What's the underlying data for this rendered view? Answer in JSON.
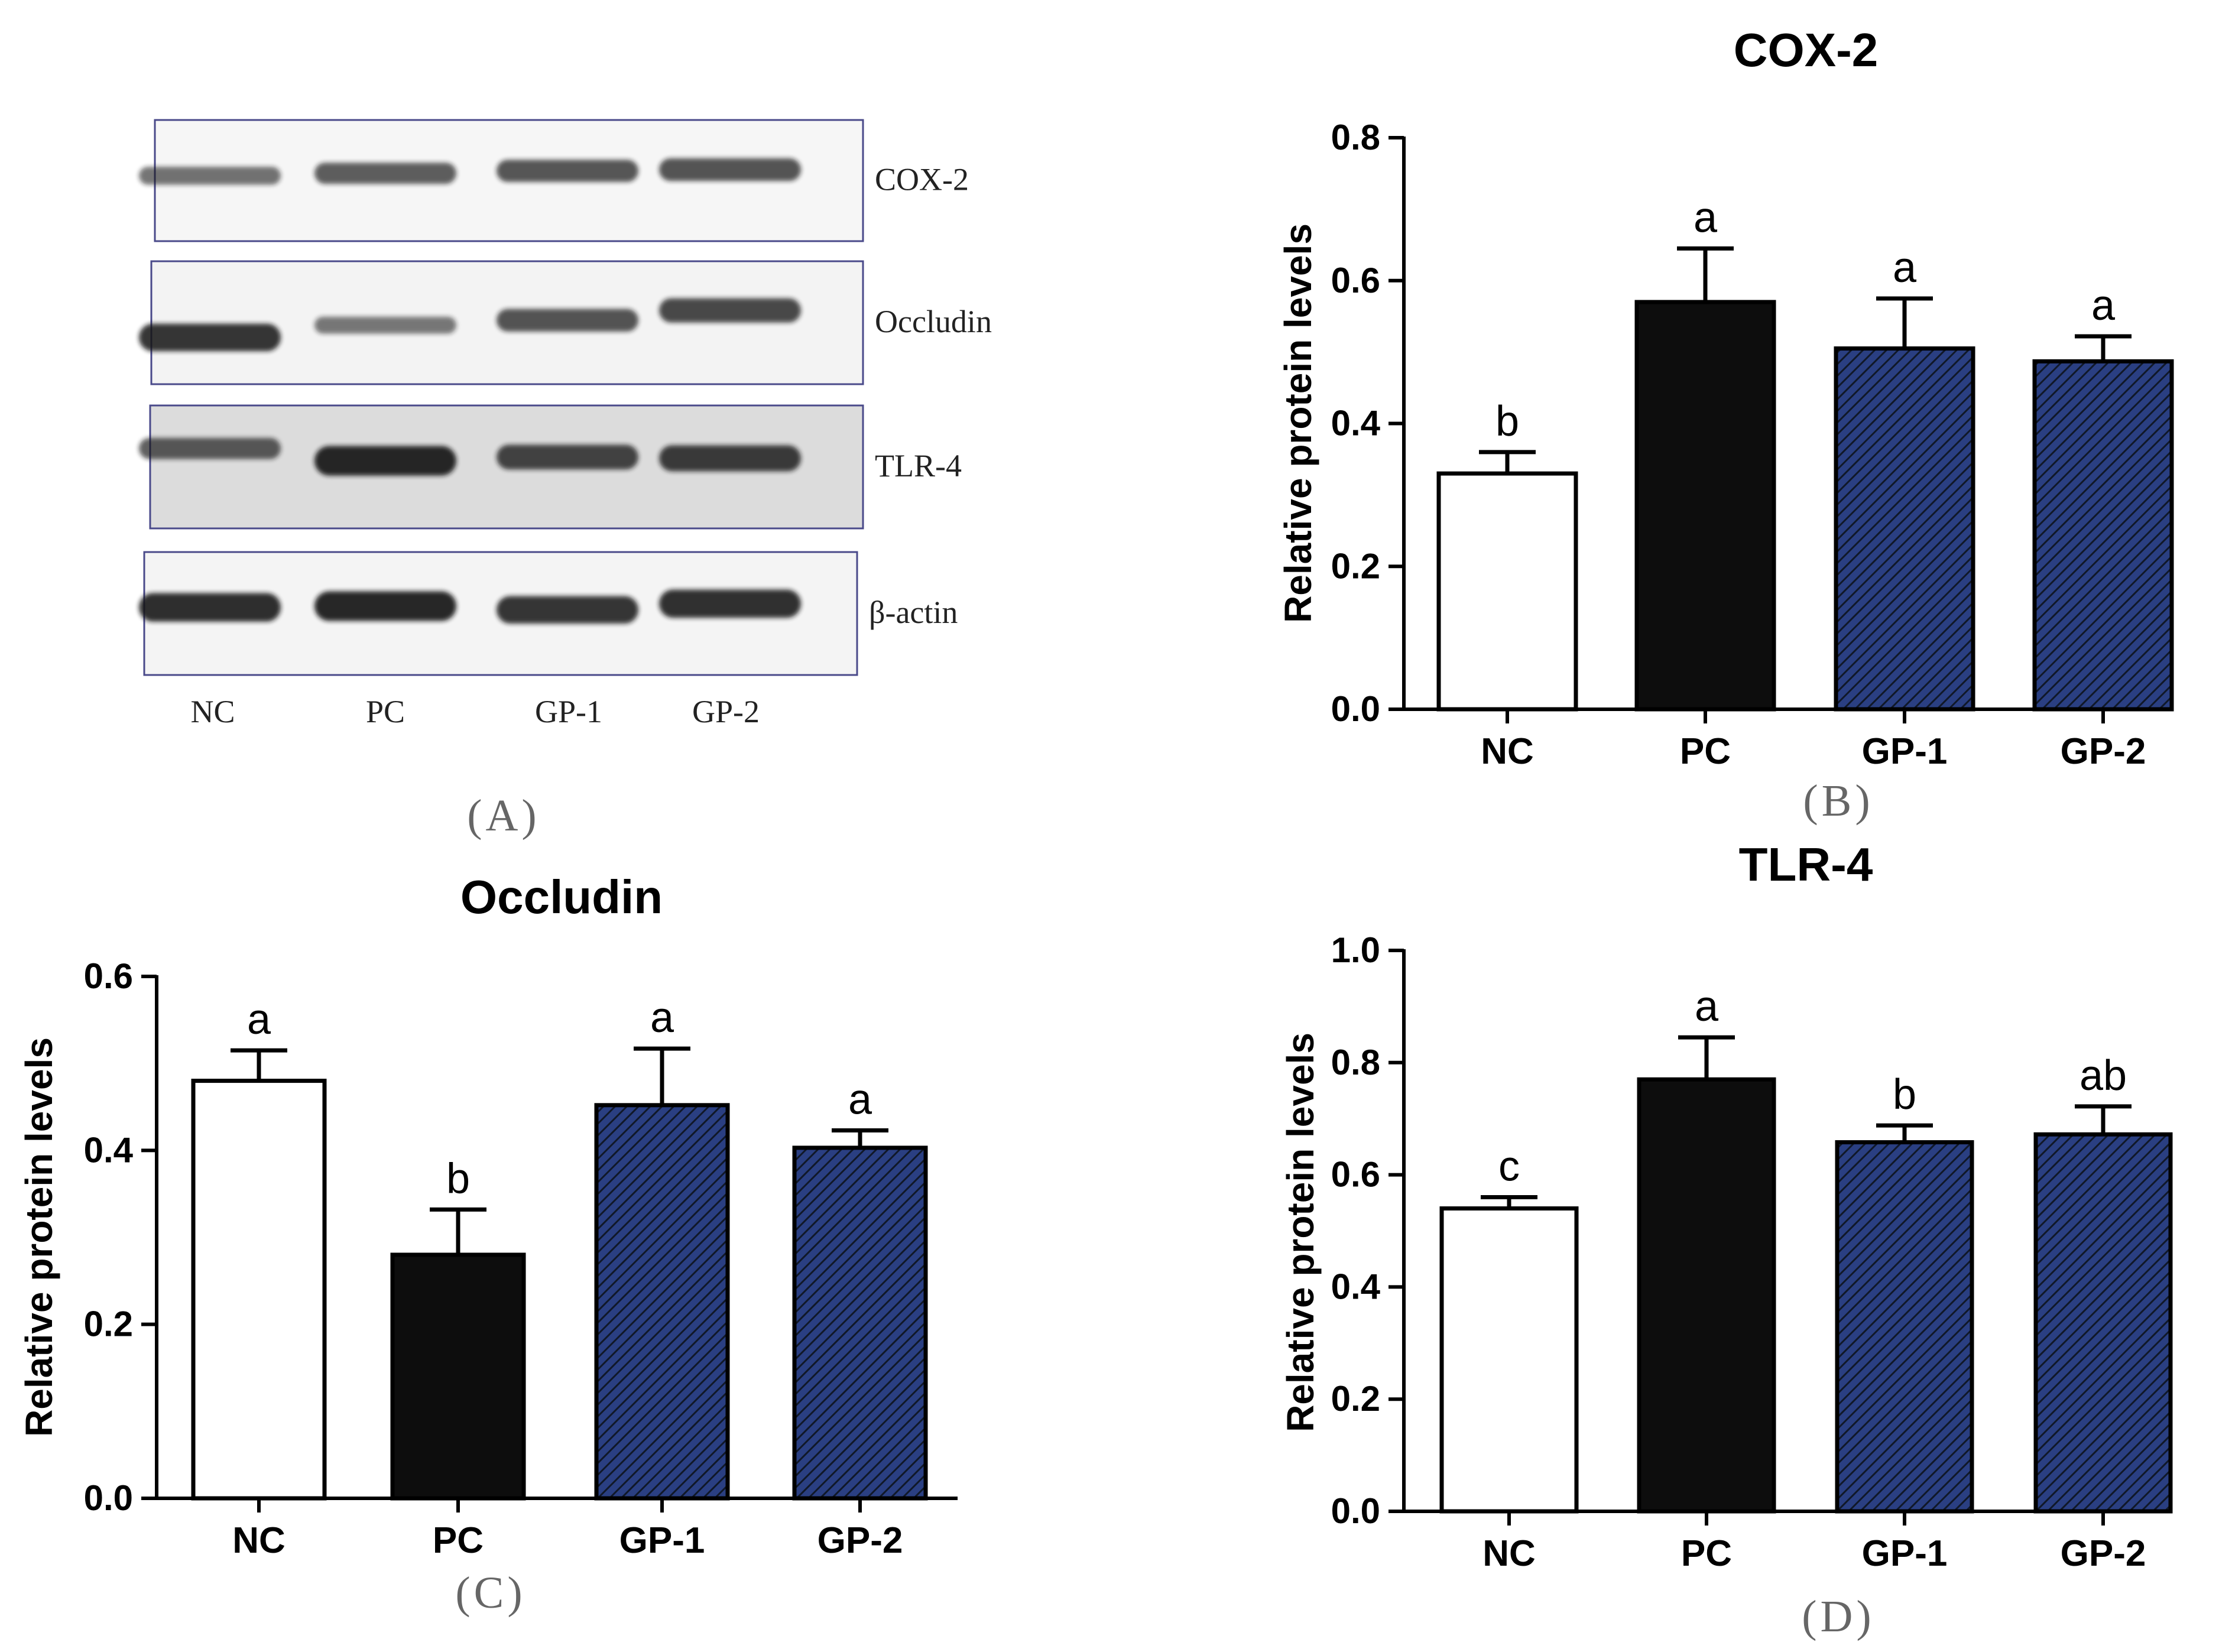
{
  "colors": {
    "hatch_fill": "#2a3f82",
    "hatch_line": "#101828",
    "blot_frame": "#4a4a8a",
    "band": "#151515",
    "bar_black": "#0d0d0d",
    "bar_white": "#ffffff",
    "axis": "#000000",
    "caption": "#666666"
  },
  "blot": {
    "caption": "(A)",
    "lanes": [
      "NC",
      "PC",
      "GP-1",
      "GP-2"
    ],
    "rows": [
      {
        "label": "COX-2",
        "intensity": [
          0.4,
          0.55,
          0.6,
          0.62
        ]
      },
      {
        "label": "Occludin",
        "intensity": [
          0.85,
          0.35,
          0.62,
          0.7
        ]
      },
      {
        "label": "TLR-4",
        "intensity": [
          0.55,
          0.95,
          0.72,
          0.78
        ]
      },
      {
        "label": "β-actin",
        "intensity": [
          0.9,
          0.95,
          0.85,
          0.88
        ]
      }
    ]
  },
  "chart_data": [
    {
      "id": "B",
      "type": "bar",
      "title": "COX-2",
      "caption": "(B)",
      "xlabel": "",
      "ylabel": "Relative protein levels",
      "categories": [
        "NC",
        "PC",
        "GP-1",
        "GP-2"
      ],
      "values": [
        0.33,
        0.57,
        0.505,
        0.487
      ],
      "errors": [
        0.03,
        0.075,
        0.07,
        0.035
      ],
      "letters": [
        "b",
        "a",
        "a",
        "a"
      ],
      "fills": [
        "white",
        "black",
        "hatch",
        "hatch"
      ],
      "ylim": [
        0,
        0.8
      ],
      "yticks": [
        "0.0",
        "0.2",
        "0.4",
        "0.6",
        "0.8"
      ],
      "grid": false
    },
    {
      "id": "C",
      "type": "bar",
      "title": "Occludin",
      "caption": "(C)",
      "xlabel": "",
      "ylabel": "Relative protein levels",
      "categories": [
        "NC",
        "PC",
        "GP-1",
        "GP-2"
      ],
      "values": [
        0.48,
        0.28,
        0.452,
        0.403
      ],
      "errors": [
        0.035,
        0.052,
        0.065,
        0.02
      ],
      "letters": [
        "a",
        "b",
        "a",
        "a"
      ],
      "fills": [
        "white",
        "black",
        "hatch",
        "hatch"
      ],
      "ylim": [
        0,
        0.6
      ],
      "yticks": [
        "0.0",
        "0.2",
        "0.4",
        "0.6"
      ],
      "grid": false
    },
    {
      "id": "D",
      "type": "bar",
      "title": "TLR-4",
      "caption": "(D)",
      "xlabel": "",
      "ylabel": "Relative protein levels",
      "categories": [
        "NC",
        "PC",
        "GP-1",
        "GP-2"
      ],
      "values": [
        0.54,
        0.77,
        0.658,
        0.672
      ],
      "errors": [
        0.02,
        0.075,
        0.03,
        0.05
      ],
      "letters": [
        "c",
        "a",
        "b",
        "ab"
      ],
      "fills": [
        "white",
        "black",
        "hatch",
        "hatch"
      ],
      "ylim": [
        0,
        1.0
      ],
      "yticks": [
        "0.0",
        "0.2",
        "0.4",
        "0.6",
        "0.8",
        "1.0"
      ],
      "grid": false
    }
  ]
}
